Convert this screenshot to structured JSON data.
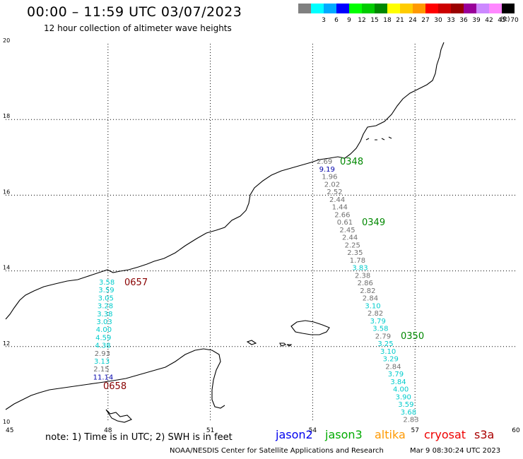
{
  "header": {
    "title": "00:00 – 11:59 UTC 03/07/2023",
    "subtitle": "12 hour collection of altimeter wave heights"
  },
  "legend": {
    "unit": "(ft)",
    "items": [
      {
        "label": "",
        "color": "#808080"
      },
      {
        "label": "3",
        "color": "#00ffff"
      },
      {
        "label": "6",
        "color": "#00aaff"
      },
      {
        "label": "9",
        "color": "#0000ff"
      },
      {
        "label": "12",
        "color": "#00ff00"
      },
      {
        "label": "15",
        "color": "#00cc00"
      },
      {
        "label": "18",
        "color": "#008800"
      },
      {
        "label": "21",
        "color": "#ffff00"
      },
      {
        "label": "24",
        "color": "#ffcc00"
      },
      {
        "label": "27",
        "color": "#ff9900"
      },
      {
        "label": "30",
        "color": "#ff0000"
      },
      {
        "label": "33",
        "color": "#cc0000"
      },
      {
        "label": "36",
        "color": "#990000"
      },
      {
        "label": "39",
        "color": "#990099"
      },
      {
        "label": "42",
        "color": "#cc88ff"
      },
      {
        "label": "45",
        "color": "#ff88ff"
      },
      {
        "label": "70",
        "color": "#000000"
      }
    ]
  },
  "axes": {
    "x_ticks": [
      45,
      48,
      51,
      54,
      57,
      60
    ],
    "y_ticks": [
      10,
      12,
      14,
      16,
      18,
      20
    ]
  },
  "tracks": [
    {
      "name": "east",
      "labels": [
        {
          "v": "2.69",
          "c": "#707070"
        },
        {
          "v": "9.19",
          "c": "#0000aa"
        },
        {
          "v": "1.96",
          "c": "#707070"
        },
        {
          "v": "2.02",
          "c": "#707070"
        },
        {
          "v": "2.52",
          "c": "#707070"
        },
        {
          "v": "2.44",
          "c": "#707070"
        },
        {
          "v": "1.44",
          "c": "#707070"
        },
        {
          "v": "2.66",
          "c": "#707070"
        },
        {
          "v": "0.61",
          "c": "#707070"
        },
        {
          "v": "2.45",
          "c": "#707070"
        },
        {
          "v": "2.44",
          "c": "#707070"
        },
        {
          "v": "2.25",
          "c": "#707070"
        },
        {
          "v": "2.35",
          "c": "#707070"
        },
        {
          "v": "1.78",
          "c": "#707070"
        },
        {
          "v": "3.83",
          "c": "#00cccc"
        },
        {
          "v": "2.38",
          "c": "#707070"
        },
        {
          "v": "2.86",
          "c": "#707070"
        },
        {
          "v": "2.82",
          "c": "#707070"
        },
        {
          "v": "2.84",
          "c": "#707070"
        },
        {
          "v": "3.10",
          "c": "#00cccc"
        },
        {
          "v": "2.82",
          "c": "#707070"
        },
        {
          "v": "3.79",
          "c": "#00cccc"
        },
        {
          "v": "3.58",
          "c": "#00cccc"
        },
        {
          "v": "2.79",
          "c": "#707070"
        },
        {
          "v": "3.25",
          "c": "#00cccc"
        },
        {
          "v": "3.10",
          "c": "#00cccc"
        },
        {
          "v": "3.29",
          "c": "#00cccc"
        },
        {
          "v": "2.84",
          "c": "#707070"
        },
        {
          "v": "3.79",
          "c": "#00cccc"
        },
        {
          "v": "3.84",
          "c": "#00cccc"
        },
        {
          "v": "4.00",
          "c": "#00cccc"
        },
        {
          "v": "3.90",
          "c": "#00cccc"
        },
        {
          "v": "3.59",
          "c": "#00cccc"
        },
        {
          "v": "3.68",
          "c": "#00cccc"
        },
        {
          "v": "2.83",
          "c": "#707070"
        }
      ]
    },
    {
      "name": "west",
      "labels": [
        {
          "v": "3.58",
          "c": "#00cccc"
        },
        {
          "v": "3.59",
          "c": "#00cccc"
        },
        {
          "v": "3.05",
          "c": "#00cccc"
        },
        {
          "v": "3.28",
          "c": "#00cccc"
        },
        {
          "v": "3.38",
          "c": "#00cccc"
        },
        {
          "v": "3.03",
          "c": "#00cccc"
        },
        {
          "v": "4.00",
          "c": "#00cccc"
        },
        {
          "v": "4.59",
          "c": "#00cccc"
        },
        {
          "v": "4.38",
          "c": "#00cccc"
        },
        {
          "v": "2.93",
          "c": "#707070"
        },
        {
          "v": "3.13",
          "c": "#00cccc"
        },
        {
          "v": "2.15",
          "c": "#707070"
        },
        {
          "v": "11.14",
          "c": "#0000aa"
        }
      ]
    }
  ],
  "pass_times": [
    {
      "label": "0348",
      "color": "#008800"
    },
    {
      "label": "0349",
      "color": "#008800"
    },
    {
      "label": "0350",
      "color": "#008800"
    },
    {
      "label": "0657",
      "color": "#880000"
    },
    {
      "label": "0658",
      "color": "#880000"
    }
  ],
  "footer": {
    "note": "note: 1) Time is in UTC; 2) SWH is in feet",
    "satellites": [
      {
        "name": "jason2",
        "color": "#0000ee"
      },
      {
        "name": "jason3",
        "color": "#00aa00"
      },
      {
        "name": "altika",
        "color": "#ff9900"
      },
      {
        "name": "cryosat",
        "color": "#ee0000"
      },
      {
        "name": "s3a",
        "color": "#aa0000"
      }
    ],
    "credit": "NOAA/NESDIS Center for Satellite Applications and Research",
    "timestamp": "Mar  9 08:30:24 UTC 2023"
  }
}
